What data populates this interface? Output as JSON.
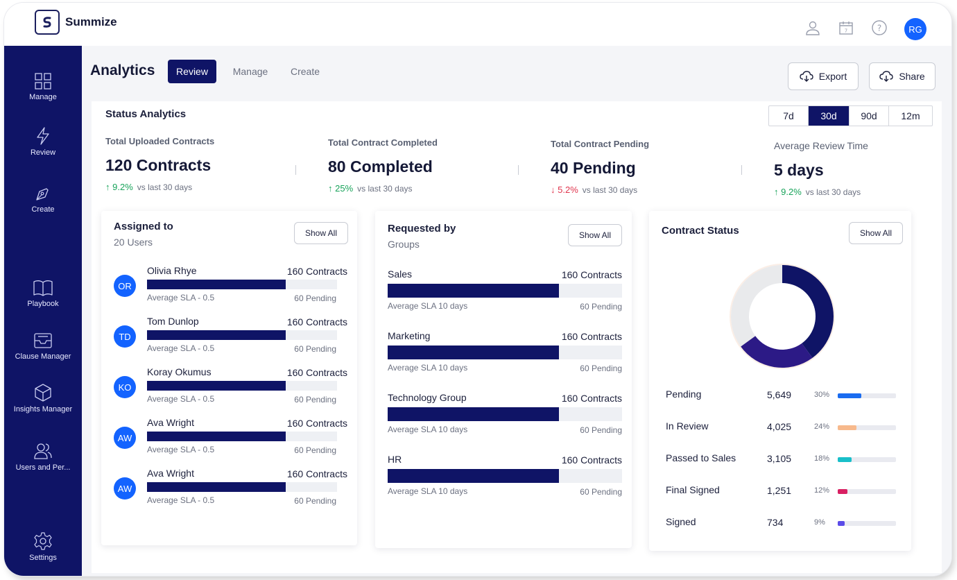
{
  "app": {
    "name": "Summize"
  },
  "user": {
    "initials": "RG"
  },
  "sidebar": {
    "items": [
      {
        "label": "Manage",
        "icon": "grid-icon"
      },
      {
        "label": "Review",
        "icon": "lightning-icon"
      },
      {
        "label": "Create",
        "icon": "pen-icon"
      },
      {
        "label": "Playbook",
        "icon": "book-icon"
      },
      {
        "label": "Clause Manager",
        "icon": "inbox-icon"
      },
      {
        "label": "Insights Manager",
        "icon": "cube-icon"
      },
      {
        "label": "Users and Per...",
        "icon": "users-icon"
      },
      {
        "label": "Settings",
        "icon": "gear-icon"
      }
    ]
  },
  "header": {
    "title": "Analytics",
    "tabs": [
      "Review",
      "Manage",
      "Create"
    ],
    "active_tab": "Review",
    "export_label": "Export",
    "share_label": "Share"
  },
  "status": {
    "title": "Status Analytics",
    "periods": [
      "7d",
      "30d",
      "90d",
      "12m"
    ],
    "active_period": "30d",
    "kpis": [
      {
        "label": "Total Uploaded Contracts",
        "value": "120 Contracts",
        "change": "9.2%",
        "direction": "up",
        "compare": "vs last 30 days"
      },
      {
        "label": "Total Contract Completed",
        "value": "80 Completed",
        "change": "25%",
        "direction": "up",
        "compare": "vs last 30 days"
      },
      {
        "label": "Total Contract Pending",
        "value": "40 Pending",
        "change": "5.2%",
        "direction": "down",
        "compare": "vs last 30 days"
      },
      {
        "label": "Average Review Time",
        "value": "5 days",
        "change": "9.2%",
        "direction": "up",
        "compare": "vs last 30 days"
      }
    ]
  },
  "assigned": {
    "title": "Assigned to",
    "subtitle": "20 Users",
    "show_all": "Show All",
    "rows": [
      {
        "initials": "OR",
        "name": "Olivia Rhye",
        "count": "160 Contracts",
        "sla": "Average SLA - 0.5",
        "pending": "60 Pending",
        "fill": 0.73
      },
      {
        "initials": "TD",
        "name": "Tom Dunlop",
        "count": "160 Contracts",
        "sla": "Average SLA - 0.5",
        "pending": "60 Pending",
        "fill": 0.73
      },
      {
        "initials": "KO",
        "name": "Koray Okumus",
        "count": "160 Contracts",
        "sla": "Average SLA - 0.5",
        "pending": "60 Pending",
        "fill": 0.73
      },
      {
        "initials": "AW",
        "name": "Ava Wright",
        "count": "160 Contracts",
        "sla": "Average SLA - 0.5",
        "pending": "60 Pending",
        "fill": 0.73
      },
      {
        "initials": "AW",
        "name": "Ava Wright",
        "count": "160 Contracts",
        "sla": "Average SLA - 0.5",
        "pending": "60 Pending",
        "fill": 0.73
      }
    ]
  },
  "requested": {
    "title": "Requested by",
    "subtitle": "Groups",
    "show_all": "Show All",
    "rows": [
      {
        "name": "Sales",
        "count": "160 Contracts",
        "sla": "Average SLA 10 days",
        "pending": "60 Pending",
        "fill": 0.73
      },
      {
        "name": "Marketing",
        "count": "160 Contracts",
        "sla": "Average SLA 10 days",
        "pending": "60 Pending",
        "fill": 0.73
      },
      {
        "name": "Technology Group",
        "count": "160 Contracts",
        "sla": "Average SLA 10 days",
        "pending": "60 Pending",
        "fill": 0.73
      },
      {
        "name": "HR",
        "count": "160 Contracts",
        "sla": "Average SLA 10 days",
        "pending": "60 Pending",
        "fill": 0.73
      }
    ]
  },
  "contract_status": {
    "title": "Contract Status",
    "show_all": "Show All",
    "items": [
      {
        "label": "Pending",
        "count": "5,649",
        "pct": "30%",
        "value": 30,
        "color": "#1a6cf0"
      },
      {
        "label": "In Review",
        "count": "4,025",
        "pct": "24%",
        "value": 24,
        "color": "#f7b98c"
      },
      {
        "label": "Passed to Sales",
        "count": "3,105",
        "pct": "18%",
        "value": 18,
        "color": "#19bfc9"
      },
      {
        "label": "Final Signed",
        "count": "1,251",
        "pct": "12%",
        "value": 12,
        "color": "#d81f62"
      },
      {
        "label": "Signed",
        "count": "734",
        "pct": "9%",
        "value": 9,
        "color": "#5b4ce8"
      }
    ],
    "donut": {
      "segments": [
        {
          "fraction": 0.4,
          "color": "#0f1466"
        },
        {
          "fraction": 0.25,
          "color": "#2c1a86"
        },
        {
          "fraction": 0.35,
          "color": "#e9eaec"
        }
      ]
    }
  }
}
